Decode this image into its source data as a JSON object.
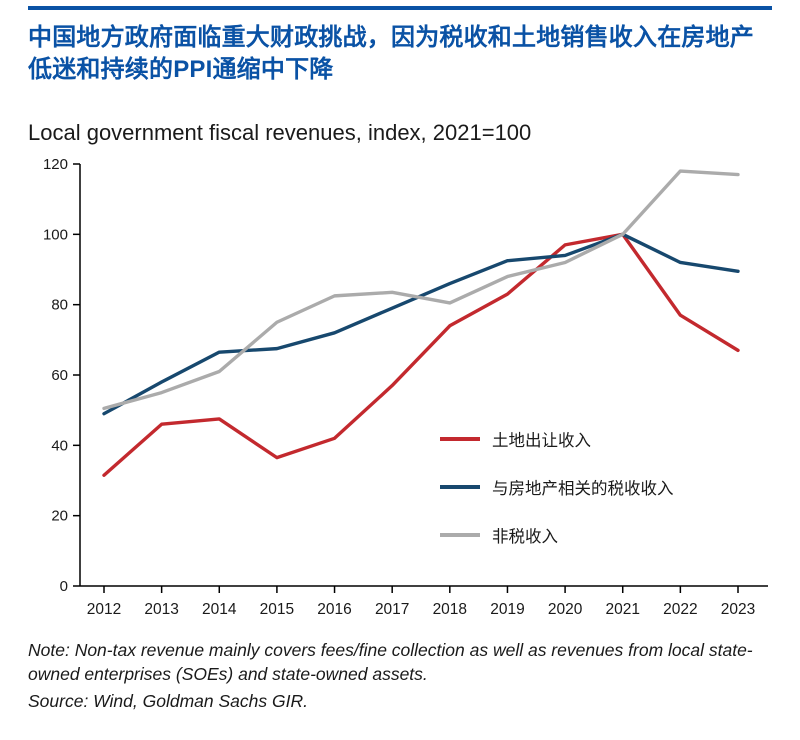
{
  "colors": {
    "accent_blue": "#0a52a5",
    "axis": "#000000",
    "text": "#1a1a1a"
  },
  "header": {
    "title": "中国地方政府面临重大财政挑战，因为税收和土地销售收入在房地产低迷和持续的PPI通缩中下降"
  },
  "chart": {
    "subtitle": "Local government fiscal revenues, index, 2021=100"
  },
  "chart_data": {
    "type": "line",
    "title": "Local government fiscal revenues, index, 2021=100",
    "categories": [
      "2012",
      "2013",
      "2014",
      "2015",
      "2016",
      "2017",
      "2018",
      "2019",
      "2020",
      "2021",
      "2022",
      "2023"
    ],
    "series": [
      {
        "name": "土地出让收入",
        "color": "#c3292e",
        "values": [
          31.5,
          46,
          47.5,
          36.5,
          42,
          57,
          74,
          83,
          97,
          100,
          77,
          67
        ]
      },
      {
        "name": "与房地产相关的税收收入",
        "color": "#17486e",
        "values": [
          49,
          58,
          66.5,
          67.5,
          72,
          79,
          86,
          92.5,
          94,
          100,
          92,
          89.5
        ]
      },
      {
        "name": "非税收入",
        "color": "#ababab",
        "values": [
          50.5,
          55,
          61,
          75,
          82.5,
          83.5,
          80.5,
          88,
          92,
          100,
          118,
          117
        ]
      }
    ],
    "xlabel": "",
    "ylabel": "",
    "ylim": [
      0,
      120
    ],
    "yticks": [
      0,
      20,
      40,
      60,
      80,
      100,
      120
    ],
    "grid": false,
    "legend_position": "inside-center-right"
  },
  "footer": {
    "note": "Note: Non-tax revenue mainly covers fees/fine collection as well as revenues from local state-owned enterprises (SOEs) and state-owned assets.",
    "source": "Source: Wind, Goldman Sachs GIR."
  }
}
